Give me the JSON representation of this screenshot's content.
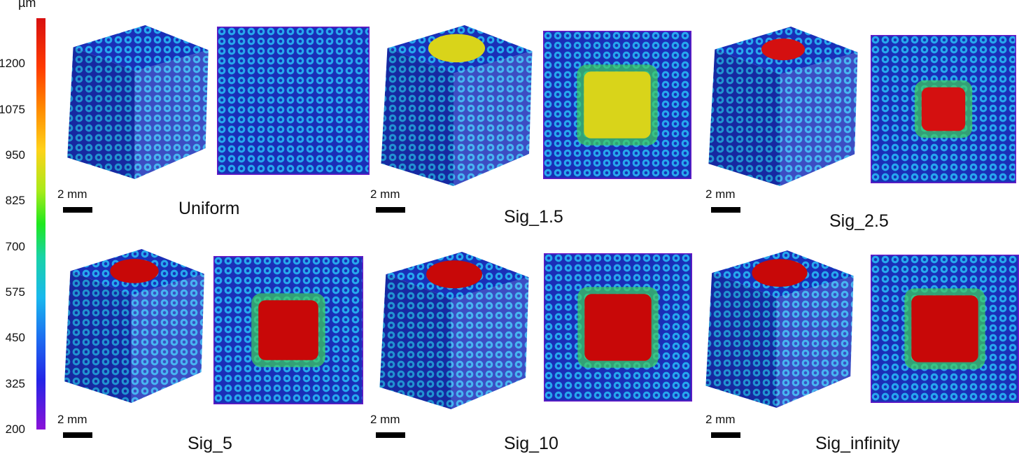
{
  "colorbar": {
    "unit": "µm",
    "ticks": [
      "1200",
      "1075",
      "950",
      "825",
      "700",
      "575",
      "450",
      "325",
      "200"
    ],
    "min": 200,
    "max": 1325
  },
  "scale_label": "2 mm",
  "cases": [
    {
      "label": "Uniform",
      "top_color": "#1fa6e8",
      "hot_color": "#1fa6e8",
      "hot_fraction": 0.0
    },
    {
      "label": "Sig_1.5",
      "top_color": "#1d5ee8",
      "hot_color": "#d9d41a",
      "hot_fraction": 0.45
    },
    {
      "label": "Sig_2.5",
      "top_color": "#1d5ee8",
      "hot_color": "#d41010",
      "hot_fraction": 0.3
    },
    {
      "label": "Sig_5",
      "top_color": "#1d5ee8",
      "hot_color": "#c80808",
      "hot_fraction": 0.4
    },
    {
      "label": "Sig_10",
      "top_color": "#1d5ee8",
      "hot_color": "#c80808",
      "hot_fraction": 0.45
    },
    {
      "label": "Sig_infinity",
      "top_color": "#1d5ee8",
      "hot_color": "#c80808",
      "hot_fraction": 0.45
    }
  ],
  "colors": {
    "lattice_dark": "#1a2fb8",
    "lattice_light": "#26a8ee",
    "edge_purple": "#6a18c8"
  }
}
